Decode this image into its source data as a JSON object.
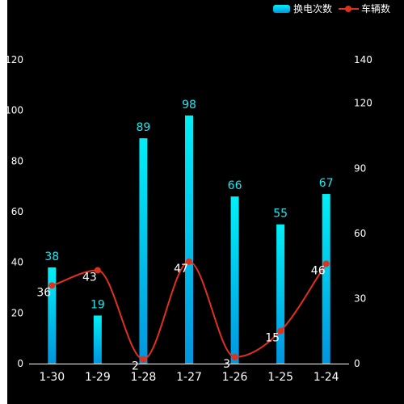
{
  "chart_data": {
    "type": "bar",
    "categories": [
      "1-30",
      "1-29",
      "1-28",
      "1-27",
      "1-26",
      "1-25",
      "1-24"
    ],
    "series": [
      {
        "name": "换电次数",
        "type": "bar",
        "axis": "left",
        "values": [
          38,
          19,
          89,
          98,
          66,
          55,
          67
        ],
        "color_top": "#00f0f6",
        "color_bottom": "#0095e0",
        "label_color": "#19e8f2"
      },
      {
        "name": "车辆数",
        "type": "line",
        "axis": "right",
        "smooth": true,
        "values": [
          36,
          43,
          2,
          47,
          3,
          15,
          46
        ],
        "color": "#e0301e"
      }
    ],
    "y_left": {
      "min": 0,
      "max": 120,
      "ticks": [
        0,
        20,
        40,
        60,
        80,
        100,
        120
      ]
    },
    "y_right": {
      "min": 0,
      "max": 140,
      "ticks": [
        0,
        30,
        60,
        90,
        120,
        140
      ]
    },
    "legend": "top-right",
    "grid": false
  }
}
